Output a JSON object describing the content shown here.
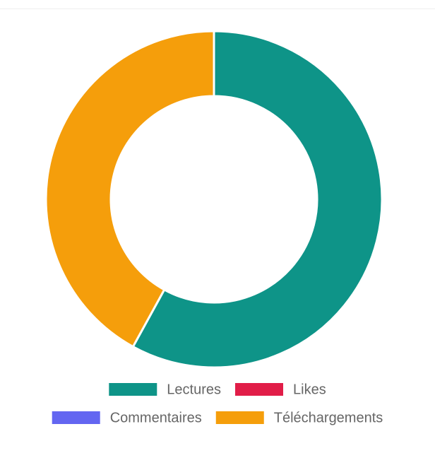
{
  "chart_data": {
    "type": "doughnut",
    "categories": [
      "Lectures",
      "Likes",
      "Commentaires",
      "Téléchargements"
    ],
    "values": [
      58,
      0,
      0,
      42
    ],
    "colors": [
      "#0e9488",
      "#e11d48",
      "#6366f1",
      "#f59e0b"
    ]
  }
}
